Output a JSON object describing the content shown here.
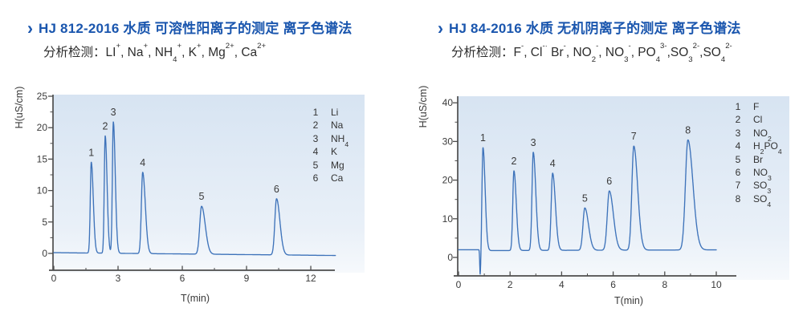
{
  "colors": {
    "title_blue": "#1a56ae",
    "body_text": "#2d2d2d",
    "curve_blue": "#3e73ba",
    "axis_gray": "#4d4d4d",
    "tick_text": "#3a3a3a",
    "plot_bg_top": "#d7e4f2",
    "plot_bg_bottom": "#f6f9fc"
  },
  "panels": [
    {
      "chevron": "›",
      "title": "HJ 812-2016 水质 可溶性阳离子的测定 离子色谱法",
      "subtitle_prefix": "分析检测：",
      "ions": "LI^+^, Na^+^, NH~4~^+^, K^+^, Mg^2+^, Ca^2+^"
    },
    {
      "chevron": "›",
      "title": "HJ 84-2016 水质 无机阴离子的测定 离子色谱法",
      "subtitle_prefix": "分析检测：",
      "ions": "F^-^, Cl^-·^ Br^-^, NO~2~^-^, NO~3~^-^, PO~4~^3-^,SO~3~^2-^,SO~4~^2-^"
    }
  ],
  "chart_data": [
    {
      "type": "line",
      "kind": "ion-chromatogram",
      "xlabel": "T(min)",
      "ylabel": "H(uS/cm)",
      "xlim": [
        0,
        13.2
      ],
      "ylim": [
        -2.7,
        25.3
      ],
      "x_major_ticks": [
        0,
        3,
        6,
        9,
        12
      ],
      "x_minor_ticks": [
        1.5,
        4.5,
        7.5,
        10.5
      ],
      "y_major_ticks": [
        0,
        5,
        10,
        15,
        20,
        25
      ],
      "y_minor_ticks": [
        2.5,
        7.5,
        12.5,
        17.5,
        22.5
      ],
      "grid": false,
      "legend_position": "top-right",
      "t_range": [
        0,
        13.15
      ],
      "baseline": {
        "start": 0.12,
        "end": -0.33
      },
      "peaks": [
        {
          "n": "1",
          "t": 1.75,
          "height": 14.5,
          "w": 0.062
        },
        {
          "n": "2",
          "t": 2.4,
          "height": 18.7,
          "w": 0.058
        },
        {
          "n": "3",
          "t": 2.78,
          "height": 20.9,
          "w": 0.06
        },
        {
          "n": "4",
          "t": 4.15,
          "height": 12.9,
          "w": 0.082
        },
        {
          "n": "5",
          "t": 6.9,
          "height": 7.5,
          "w": 0.115
        },
        {
          "n": "6",
          "t": 10.4,
          "height": 8.7,
          "w": 0.105
        }
      ],
      "legend": [
        {
          "n": "1",
          "label": "Li"
        },
        {
          "n": "2",
          "label": "Na"
        },
        {
          "n": "3",
          "label": "NH~4~"
        },
        {
          "n": "4",
          "label": "K"
        },
        {
          "n": "5",
          "label": "Mg"
        },
        {
          "n": "6",
          "label": "Ca"
        }
      ]
    },
    {
      "type": "line",
      "kind": "ion-chromatogram",
      "xlabel": "T(min)",
      "ylabel": "H(uS/cm)",
      "xlim": [
        0,
        10.8
      ],
      "ylim": [
        -4.8,
        41.7
      ],
      "x_major_ticks": [
        0,
        2,
        4,
        6,
        8,
        10
      ],
      "x_minor_ticks": [
        1,
        3,
        5,
        7,
        9
      ],
      "y_major_ticks": [
        0,
        10,
        20,
        30,
        40
      ],
      "y_minor_ticks": [
        5,
        15,
        25,
        35
      ],
      "grid": false,
      "legend_position": "top-right",
      "t_range": [
        0,
        10.0
      ],
      "baseline": {
        "pre": 2.0,
        "post_start": 1.77,
        "post_end": 1.95
      },
      "injection_dip": {
        "t": 0.84,
        "min_value": -5.0,
        "w": 0.022
      },
      "peaks": [
        {
          "n": "1",
          "t": 0.95,
          "height": 28.4,
          "w": 0.055
        },
        {
          "n": "2",
          "t": 2.15,
          "height": 22.4,
          "w": 0.06
        },
        {
          "n": "3",
          "t": 2.9,
          "height": 27.2,
          "w": 0.065
        },
        {
          "n": "4",
          "t": 3.65,
          "height": 21.8,
          "w": 0.072
        },
        {
          "n": "5",
          "t": 4.9,
          "height": 12.8,
          "w": 0.095
        },
        {
          "n": "6",
          "t": 5.85,
          "height": 17.2,
          "w": 0.105
        },
        {
          "n": "7",
          "t": 6.8,
          "height": 28.8,
          "w": 0.1
        },
        {
          "n": "8",
          "t": 8.9,
          "height": 30.4,
          "w": 0.13
        }
      ],
      "legend": [
        {
          "n": "1",
          "label": "F"
        },
        {
          "n": "2",
          "label": "Cl"
        },
        {
          "n": "3",
          "label": "NO~2~"
        },
        {
          "n": "4",
          "label": "H~2~PO~4~"
        },
        {
          "n": "5",
          "label": "Br"
        },
        {
          "n": "6",
          "label": "NO~3~"
        },
        {
          "n": "7",
          "label": "SO~3~"
        },
        {
          "n": "8",
          "label": "SO~4~"
        }
      ]
    }
  ]
}
